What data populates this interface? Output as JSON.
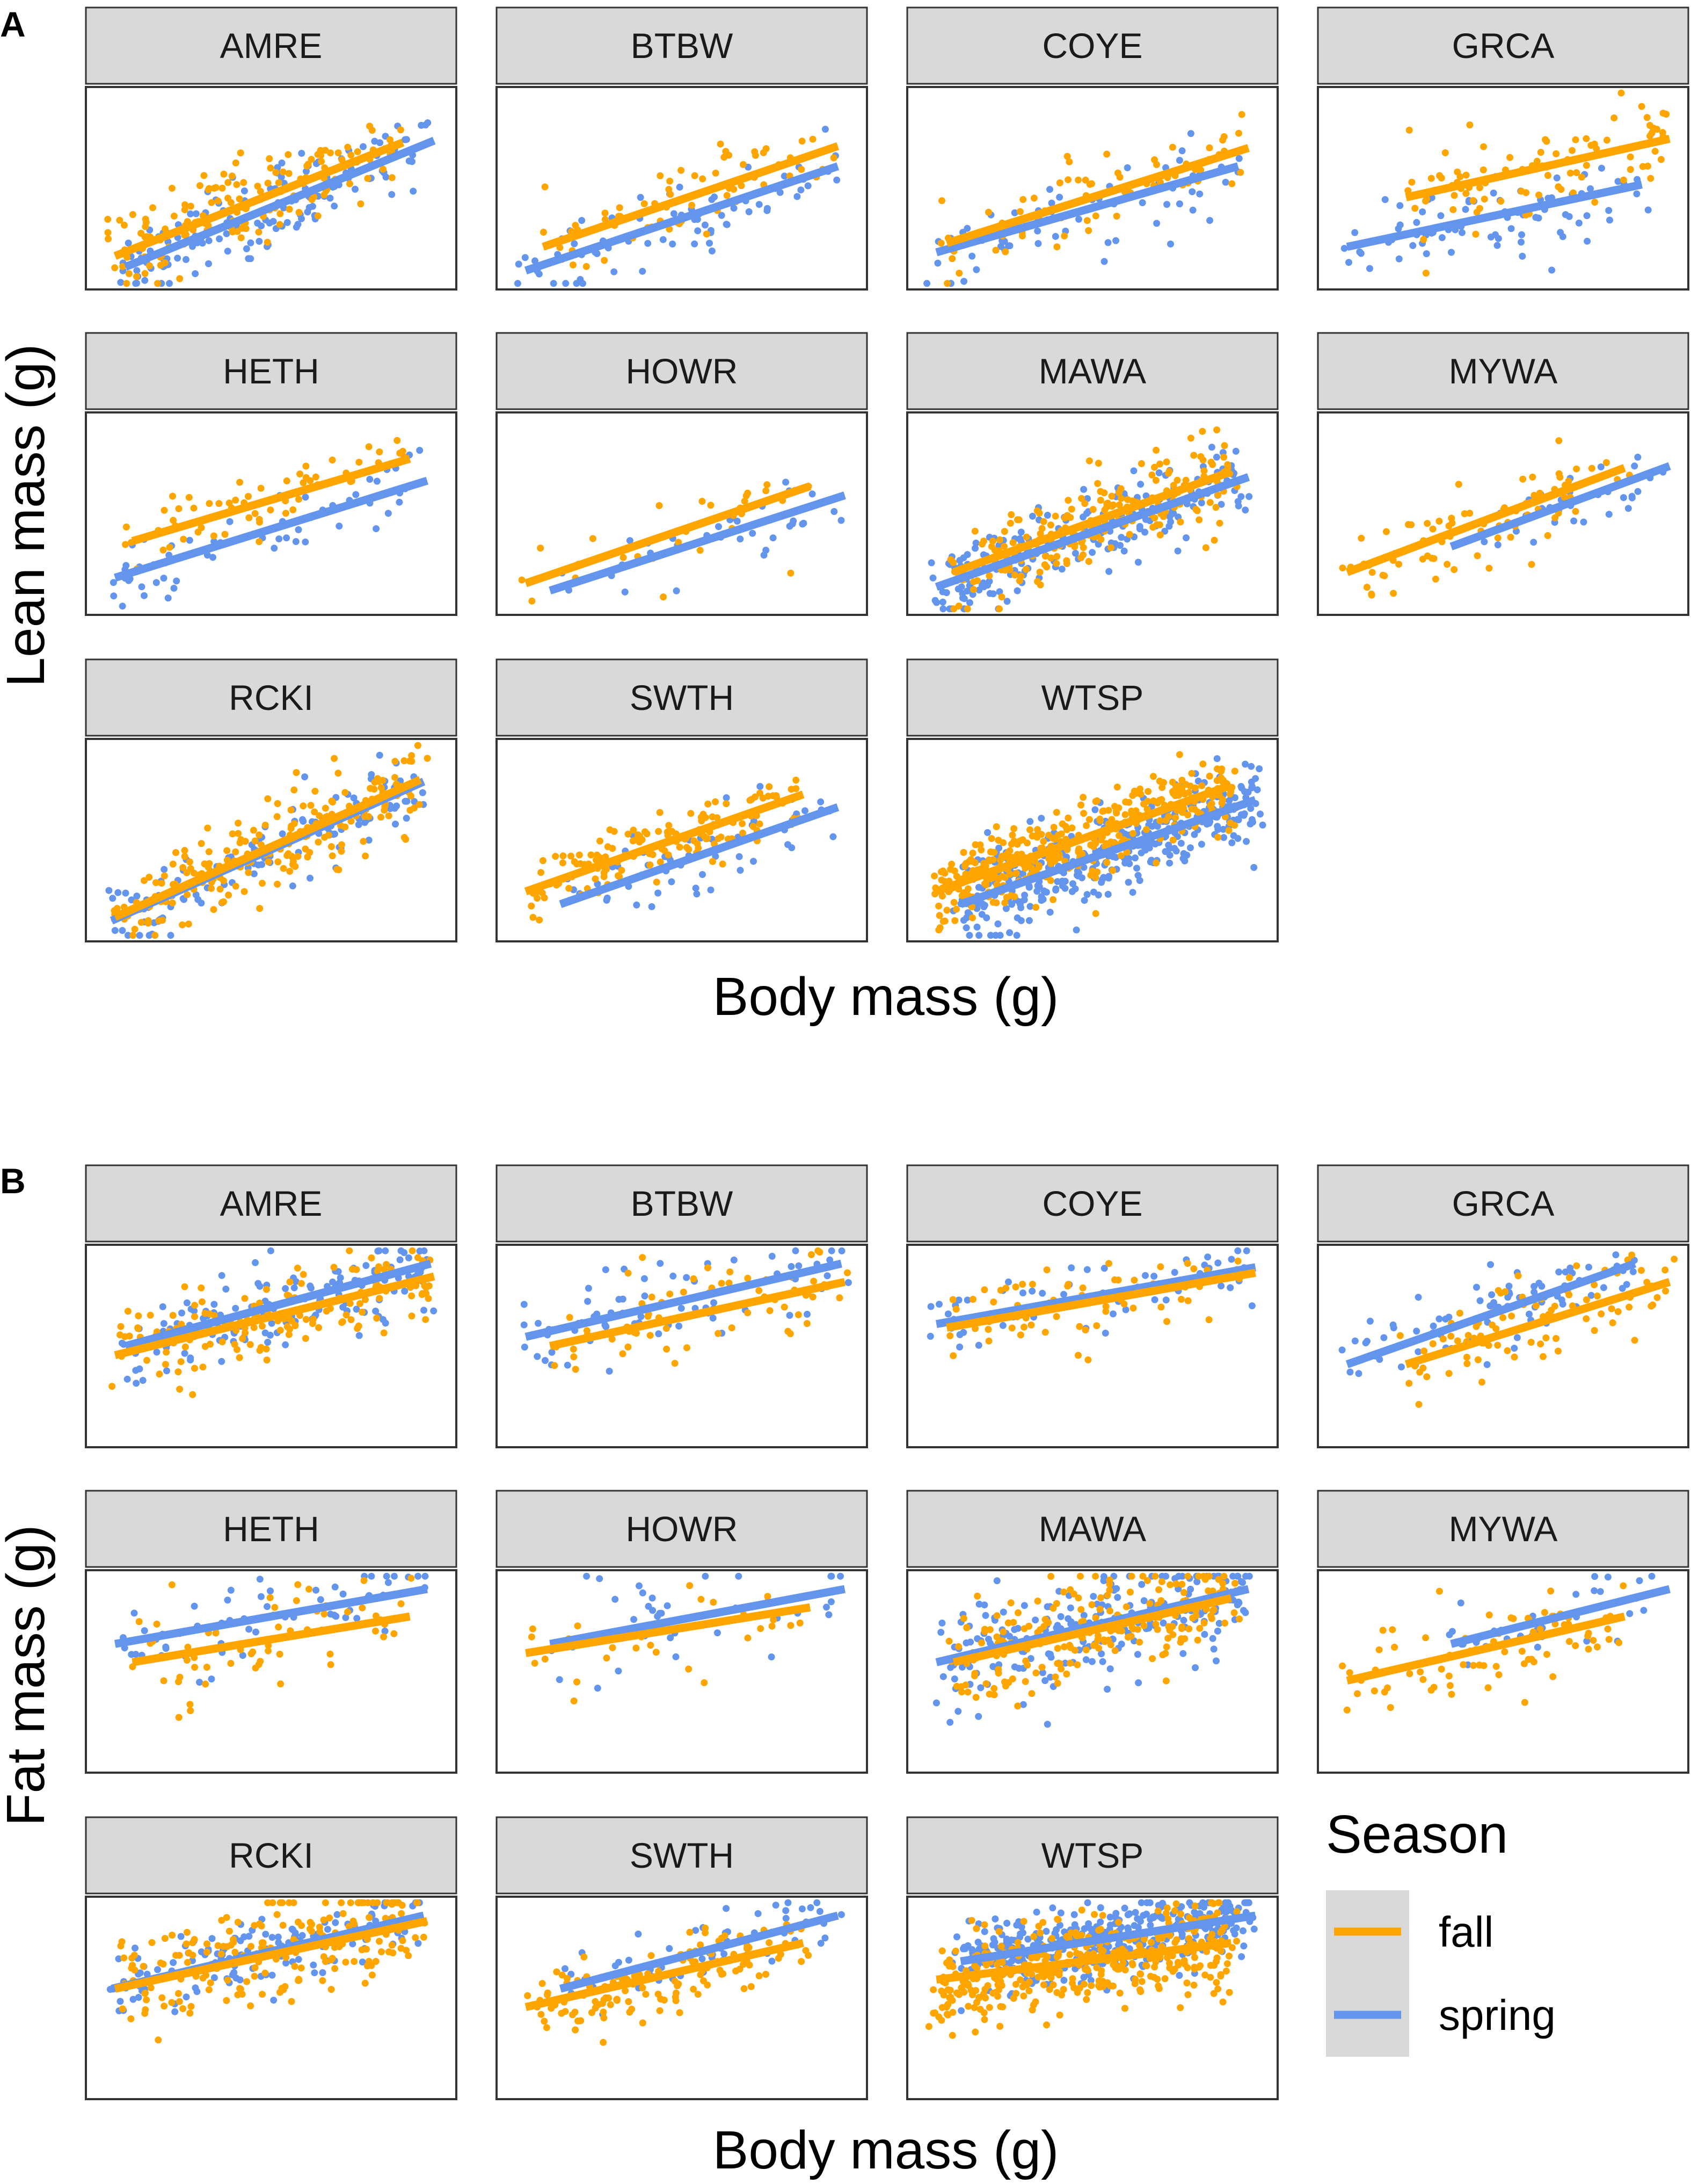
{
  "colors": {
    "fall": "#FFA500",
    "spring": "#6495ED"
  },
  "legend": {
    "title": "Season",
    "items": [
      "fall",
      "spring"
    ]
  },
  "chart_data": [
    {
      "tag": "A",
      "type": "scatter",
      "ylabel": "Lean mass (g)",
      "xlabel": "Body mass (g)",
      "facets": [
        {
          "label": "AMRE",
          "fall": {
            "start": [
              0.05,
              0.13
            ],
            "end": [
              0.88,
              0.75
            ],
            "n": 160,
            "spread": 0.11,
            "seed": 11
          },
          "spring": {
            "start": [
              0.08,
              0.07
            ],
            "end": [
              0.97,
              0.76
            ],
            "n": 160,
            "spread": 0.1,
            "seed": 12
          }
        },
        {
          "label": "BTBW",
          "fall": {
            "start": [
              0.1,
              0.18
            ],
            "end": [
              0.95,
              0.73
            ],
            "n": 70,
            "spread": 0.12,
            "seed": 21
          },
          "spring": {
            "start": [
              0.05,
              0.05
            ],
            "end": [
              0.95,
              0.62
            ],
            "n": 70,
            "spread": 0.1,
            "seed": 22
          }
        },
        {
          "label": "COYE",
          "fall": {
            "start": [
              0.08,
              0.2
            ],
            "end": [
              0.95,
              0.72
            ],
            "n": 70,
            "spread": 0.11,
            "seed": 31
          },
          "spring": {
            "start": [
              0.05,
              0.15
            ],
            "end": [
              0.92,
              0.62
            ],
            "n": 70,
            "spread": 0.11,
            "seed": 32
          }
        },
        {
          "label": "GRCA",
          "fall": {
            "start": [
              0.22,
              0.45
            ],
            "end": [
              0.98,
              0.77
            ],
            "n": 90,
            "spread": 0.13,
            "seed": 41
          },
          "spring": {
            "start": [
              0.05,
              0.18
            ],
            "end": [
              0.9,
              0.52
            ],
            "n": 80,
            "spread": 0.11,
            "seed": 42
          }
        },
        {
          "label": "HETH",
          "fall": {
            "start": [
              0.1,
              0.35
            ],
            "end": [
              0.9,
              0.8
            ],
            "n": 60,
            "spread": 0.09,
            "seed": 51
          },
          "spring": {
            "start": [
              0.05,
              0.15
            ],
            "end": [
              0.95,
              0.68
            ],
            "n": 60,
            "spread": 0.1,
            "seed": 52
          }
        },
        {
          "label": "HOWR",
          "fall": {
            "start": [
              0.05,
              0.12
            ],
            "end": [
              0.87,
              0.65
            ],
            "n": 30,
            "spread": 0.13,
            "seed": 61
          },
          "spring": {
            "start": [
              0.12,
              0.08
            ],
            "end": [
              0.97,
              0.6
            ],
            "n": 35,
            "spread": 0.12,
            "seed": 62
          }
        },
        {
          "label": "MAWA",
          "fall": {
            "start": [
              0.1,
              0.18
            ],
            "end": [
              0.9,
              0.73
            ],
            "n": 220,
            "spread": 0.12,
            "seed": 71
          },
          "spring": {
            "start": [
              0.05,
              0.1
            ],
            "end": [
              0.95,
              0.7
            ],
            "n": 220,
            "spread": 0.12,
            "seed": 72
          }
        },
        {
          "label": "MYWA",
          "fall": {
            "start": [
              0.05,
              0.18
            ],
            "end": [
              0.85,
              0.75
            ],
            "n": 80,
            "spread": 0.11,
            "seed": 81
          },
          "spring": {
            "start": [
              0.35,
              0.32
            ],
            "end": [
              0.98,
              0.76
            ],
            "n": 35,
            "spread": 0.09,
            "seed": 82
          }
        },
        {
          "label": "RCKI",
          "fall": {
            "start": [
              0.05,
              0.08
            ],
            "end": [
              0.93,
              0.83
            ],
            "n": 210,
            "spread": 0.12,
            "seed": 91
          },
          "spring": {
            "start": [
              0.04,
              0.06
            ],
            "end": [
              0.94,
              0.82
            ],
            "n": 140,
            "spread": 0.1,
            "seed": 92
          }
        },
        {
          "label": "SWTH",
          "fall": {
            "start": [
              0.05,
              0.22
            ],
            "end": [
              0.85,
              0.75
            ],
            "n": 150,
            "spread": 0.08,
            "seed": 101
          },
          "spring": {
            "start": [
              0.15,
              0.15
            ],
            "end": [
              0.95,
              0.68
            ],
            "n": 60,
            "spread": 0.09,
            "seed": 102
          }
        },
        {
          "label": "WTSP",
          "fall": {
            "start": [
              0.05,
              0.22
            ],
            "end": [
              0.9,
              0.8
            ],
            "n": 400,
            "spread": 0.1,
            "seed": 111
          },
          "spring": {
            "start": [
              0.12,
              0.15
            ],
            "end": [
              0.97,
              0.72
            ],
            "n": 400,
            "spread": 0.12,
            "seed": 112
          }
        }
      ]
    },
    {
      "tag": "B",
      "type": "scatter",
      "ylabel": "Fat mass (g)",
      "xlabel": "Body mass (g)",
      "facets": [
        {
          "label": "AMRE",
          "fall": {
            "start": [
              0.05,
              0.45
            ],
            "end": [
              0.97,
              0.88
            ],
            "n": 150,
            "spread": 0.12,
            "seed": 211
          },
          "spring": {
            "start": [
              0.08,
              0.5
            ],
            "end": [
              0.96,
              0.95
            ],
            "n": 150,
            "spread": 0.12,
            "seed": 212
          }
        },
        {
          "label": "BTBW",
          "fall": {
            "start": [
              0.12,
              0.5
            ],
            "end": [
              0.97,
              0.85
            ],
            "n": 70,
            "spread": 0.14,
            "seed": 221
          },
          "spring": {
            "start": [
              0.05,
              0.55
            ],
            "end": [
              0.96,
              0.95
            ],
            "n": 70,
            "spread": 0.13,
            "seed": 222
          }
        },
        {
          "label": "COYE",
          "fall": {
            "start": [
              0.08,
              0.6
            ],
            "end": [
              0.97,
              0.9
            ],
            "n": 70,
            "spread": 0.12,
            "seed": 231
          },
          "spring": {
            "start": [
              0.05,
              0.62
            ],
            "end": [
              0.97,
              0.93
            ],
            "n": 70,
            "spread": 0.11,
            "seed": 232
          }
        },
        {
          "label": "GRCA",
          "fall": {
            "start": [
              0.22,
              0.4
            ],
            "end": [
              0.98,
              0.85
            ],
            "n": 90,
            "spread": 0.12,
            "seed": 241
          },
          "spring": {
            "start": [
              0.05,
              0.4
            ],
            "end": [
              0.88,
              0.95
            ],
            "n": 80,
            "spread": 0.11,
            "seed": 242
          }
        },
        {
          "label": "HETH",
          "fall": {
            "start": [
              0.1,
              0.55
            ],
            "end": [
              0.9,
              0.8
            ],
            "n": 60,
            "spread": 0.16,
            "seed": 251
          },
          "spring": {
            "start": [
              0.05,
              0.65
            ],
            "end": [
              0.95,
              0.95
            ],
            "n": 60,
            "spread": 0.12,
            "seed": 252
          }
        },
        {
          "label": "HOWR",
          "fall": {
            "start": [
              0.05,
              0.6
            ],
            "end": [
              0.87,
              0.85
            ],
            "n": 30,
            "spread": 0.15,
            "seed": 261
          },
          "spring": {
            "start": [
              0.12,
              0.65
            ],
            "end": [
              0.97,
              0.95
            ],
            "n": 35,
            "spread": 0.14,
            "seed": 262
          }
        },
        {
          "label": "MAWA",
          "fall": {
            "start": [
              0.1,
              0.55
            ],
            "end": [
              0.9,
              0.9
            ],
            "n": 220,
            "spread": 0.13,
            "seed": 271
          },
          "spring": {
            "start": [
              0.05,
              0.55
            ],
            "end": [
              0.95,
              0.95
            ],
            "n": 220,
            "spread": 0.14,
            "seed": 272
          }
        },
        {
          "label": "MYWA",
          "fall": {
            "start": [
              0.05,
              0.45
            ],
            "end": [
              0.85,
              0.8
            ],
            "n": 80,
            "spread": 0.13,
            "seed": 281
          },
          "spring": {
            "start": [
              0.35,
              0.65
            ],
            "end": [
              0.98,
              0.95
            ],
            "n": 35,
            "spread": 0.1,
            "seed": 282
          }
        },
        {
          "label": "RCKI",
          "fall": {
            "start": [
              0.05,
              0.55
            ],
            "end": [
              0.95,
              0.92
            ],
            "n": 210,
            "spread": 0.15,
            "seed": 291
          },
          "spring": {
            "start": [
              0.04,
              0.55
            ],
            "end": [
              0.94,
              0.95
            ],
            "n": 140,
            "spread": 0.11,
            "seed": 292
          }
        },
        {
          "label": "SWTH",
          "fall": {
            "start": [
              0.05,
              0.45
            ],
            "end": [
              0.85,
              0.8
            ],
            "n": 150,
            "spread": 0.09,
            "seed": 301
          },
          "spring": {
            "start": [
              0.15,
              0.55
            ],
            "end": [
              0.95,
              0.95
            ],
            "n": 60,
            "spread": 0.1,
            "seed": 302
          }
        },
        {
          "label": "WTSP",
          "fall": {
            "start": [
              0.05,
              0.6
            ],
            "end": [
              0.9,
              0.8
            ],
            "n": 400,
            "spread": 0.13,
            "seed": 311
          },
          "spring": {
            "start": [
              0.12,
              0.7
            ],
            "end": [
              0.97,
              0.95
            ],
            "n": 400,
            "spread": 0.1,
            "seed": 312
          }
        }
      ]
    }
  ]
}
